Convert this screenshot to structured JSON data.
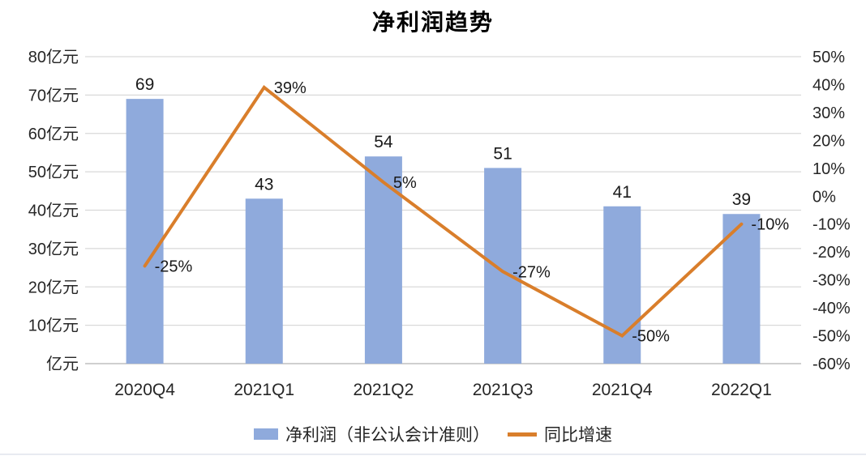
{
  "title": "净利润趋势",
  "legend": {
    "bar_label": "净利润（非公认会计准则）",
    "line_label": "同比增速"
  },
  "colors": {
    "bar": "#8FAADC",
    "line": "#D97E2B",
    "grid": "#D9D9D9",
    "baseline": "#BFBFBF",
    "text": "#262626",
    "label_text": "#1A1A1A"
  },
  "chart_data": {
    "type": "combo-bar-line",
    "title": "净利润趋势",
    "categories": [
      "2020Q4",
      "2021Q1",
      "2021Q2",
      "2021Q3",
      "2021Q4",
      "2022Q1"
    ],
    "series": [
      {
        "name": "净利润（非公认会计准则）",
        "type": "bar",
        "axis": "left",
        "unit": "亿元",
        "values": [
          69,
          43,
          54,
          51,
          41,
          39
        ],
        "labels": [
          "69",
          "43",
          "54",
          "51",
          "41",
          "39"
        ],
        "color": "#8FAADC"
      },
      {
        "name": "同比增速",
        "type": "line",
        "axis": "right",
        "unit": "%",
        "values": [
          -25,
          39,
          5,
          -27,
          -50,
          -10
        ],
        "labels": [
          "-25%",
          "39%",
          "5%",
          "-27%",
          "-50%",
          "-10%"
        ],
        "color": "#D97E2B"
      }
    ],
    "left_axis": {
      "min": 0,
      "max": 80,
      "step": 10,
      "tick_labels": [
        "80亿元",
        "70亿元",
        "60亿元",
        "50亿元",
        "40亿元",
        "30亿元",
        "20亿元",
        "10亿元",
        "亿元"
      ]
    },
    "right_axis": {
      "min": -60,
      "max": 50,
      "step": 10,
      "tick_labels": [
        "50%",
        "40%",
        "30%",
        "20%",
        "10%",
        "0%",
        "-10%",
        "-20%",
        "-30%",
        "-40%",
        "-50%",
        "-60%"
      ]
    },
    "grid": "horizontal-left-axis-only",
    "legend_position": "bottom"
  }
}
